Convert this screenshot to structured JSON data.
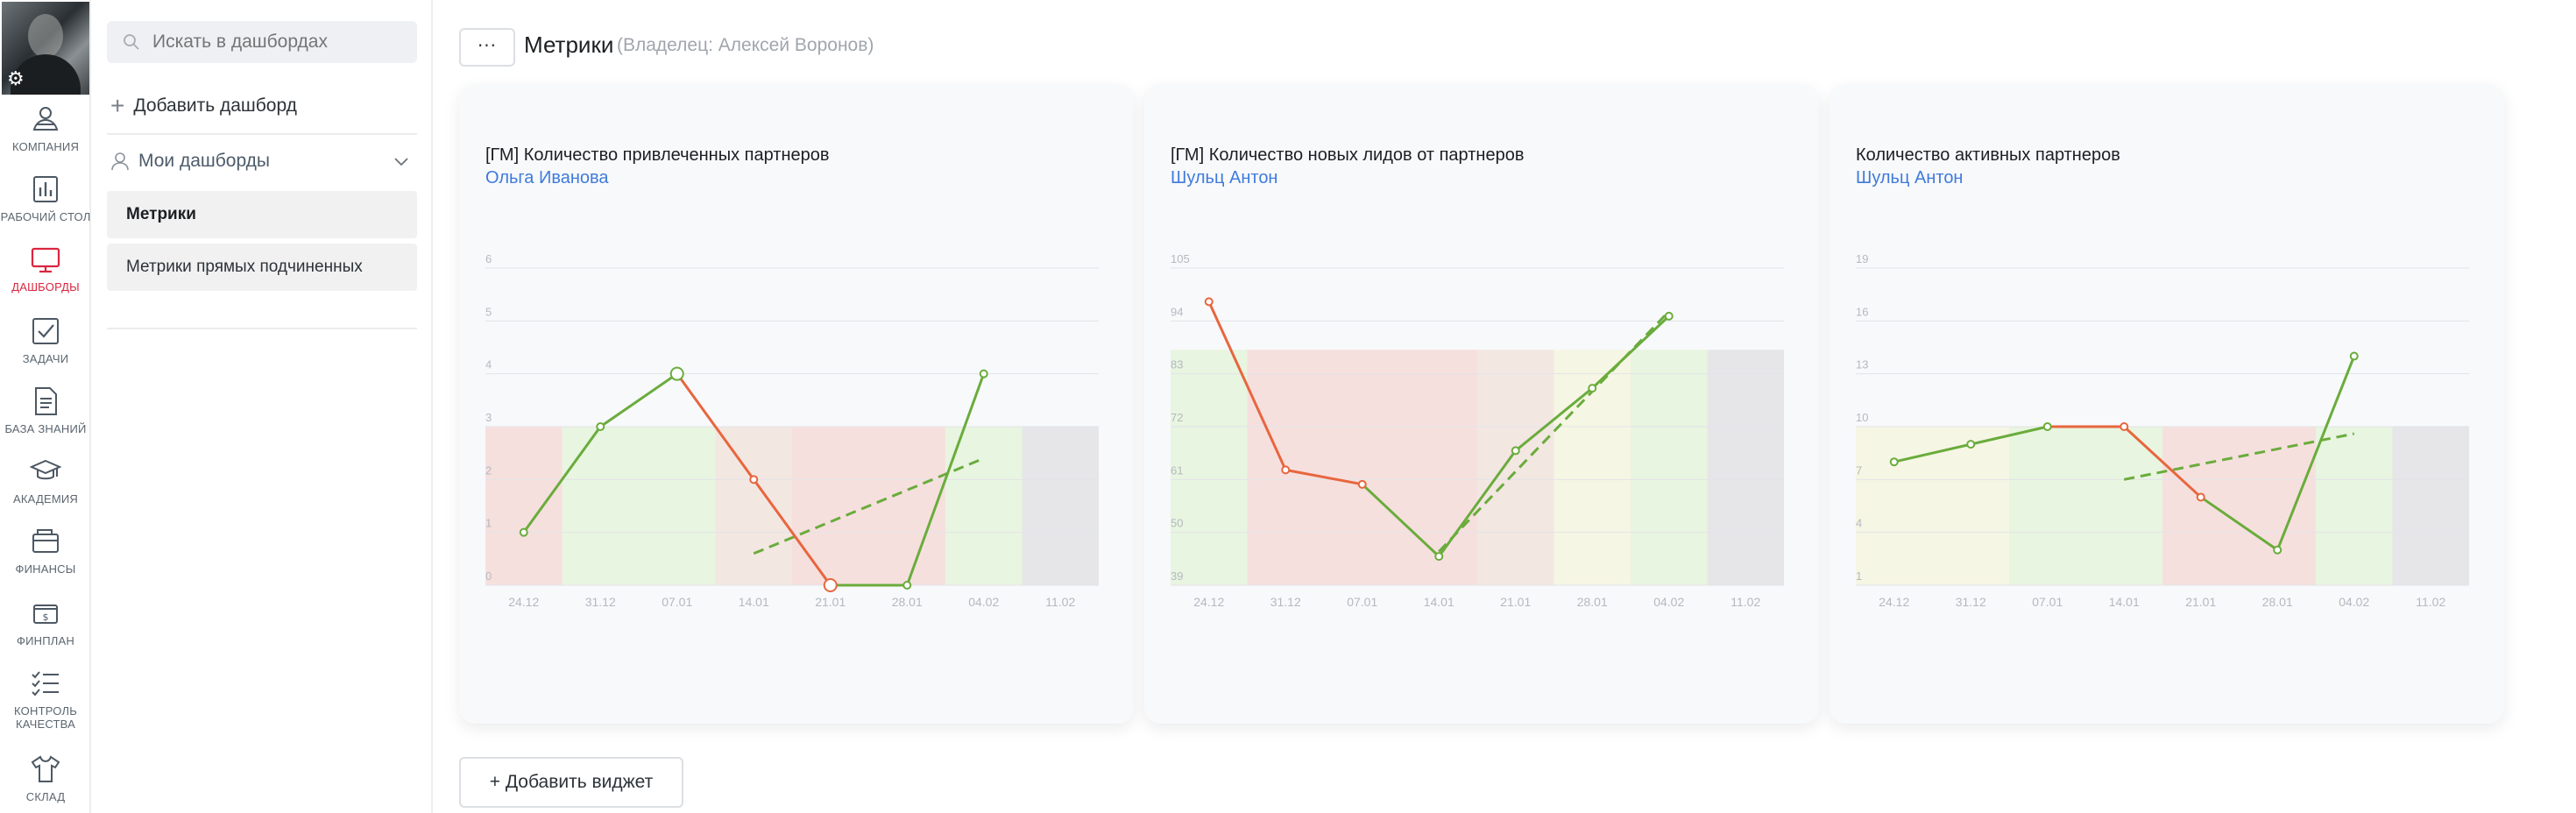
{
  "rail": {
    "items": [
      {
        "label": "КОМПАНИЯ",
        "icon": "company-icon"
      },
      {
        "label": "РАБОЧИЙ СТОЛ",
        "icon": "desktop-chart-icon"
      },
      {
        "label": "ДАШБОРДЫ",
        "icon": "dashboards-monitor-icon",
        "active": true
      },
      {
        "label": "ЗАДАЧИ",
        "icon": "tasks-check-icon"
      },
      {
        "label": "БАЗА ЗНАНИЙ",
        "icon": "knowledge-doc-icon"
      },
      {
        "label": "АКАДЕМИЯ",
        "icon": "academy-cap-icon"
      },
      {
        "label": "ФИНАНСЫ",
        "icon": "finance-wallet-icon"
      },
      {
        "label": "ФИНПЛАН",
        "icon": "finplan-icon"
      },
      {
        "label": "КОНТРОЛЬ КАЧЕСТВА",
        "icon": "quality-checklist-icon"
      },
      {
        "label": "СКЛАД",
        "icon": "warehouse-shirt-icon"
      }
    ],
    "active_color": "#d9263f"
  },
  "sidebar": {
    "search_placeholder": "Искать в дашбордах",
    "add_dashboard": "Добавить дашборд",
    "my_dashboards": "Мои дашборды",
    "dashboards": [
      "Метрики",
      "Метрики прямых подчиненных"
    ]
  },
  "main": {
    "menu_button": "···",
    "title": "Метрики",
    "owner": "(Владелец: Алексей Воронов)",
    "add_widget": "+ Добавить виджет"
  },
  "chart_data": [
    {
      "type": "line",
      "title": "[ГМ] Количество привлеченных партнеров",
      "owner": "Ольга Иванова",
      "x": [
        "24.12",
        "31.12",
        "07.01",
        "14.01",
        "21.01",
        "28.01",
        "04.02",
        "11.02"
      ],
      "yticks": [
        "0",
        "1",
        "2",
        "3",
        "4",
        "5",
        "6"
      ],
      "ylim": [
        0,
        6
      ],
      "band": [
        0,
        3
      ],
      "bands": [
        "red",
        "green",
        "green",
        "beige",
        "red",
        "red",
        "green",
        "gray"
      ],
      "points": [
        {
          "x": 0,
          "y": 1,
          "c": "green"
        },
        {
          "x": 1,
          "y": 3,
          "c": "green"
        },
        {
          "x": 2,
          "y": 4,
          "c": "green"
        },
        {
          "x": 3,
          "y": 2,
          "c": "red"
        },
        {
          "x": 4,
          "y": 0,
          "c": "red"
        },
        {
          "x": 5,
          "y": 0,
          "c": "green"
        },
        {
          "x": 6,
          "y": 4,
          "c": "green"
        }
      ],
      "trend": [
        [
          3,
          0.6
        ],
        [
          6,
          2.4
        ]
      ]
    },
    {
      "type": "line",
      "title": "[ГМ] Количество новых лидов от партнеров",
      "owner": "Шульц Антон",
      "x": [
        "24.12",
        "31.12",
        "07.01",
        "14.01",
        "21.01",
        "28.01",
        "04.02",
        "11.02"
      ],
      "yticks": [
        "39",
        "50",
        "61",
        "72",
        "83",
        "94",
        "105"
      ],
      "ylim": [
        39,
        105
      ],
      "band": [
        39,
        88
      ],
      "bands": [
        "green",
        "red",
        "red",
        "red",
        "beige",
        "yellow",
        "green",
        "gray"
      ],
      "points": [
        {
          "x": 0,
          "y": 98,
          "c": "red"
        },
        {
          "x": 1,
          "y": 63,
          "c": "red"
        },
        {
          "x": 2,
          "y": 60,
          "c": "red"
        },
        {
          "x": 3,
          "y": 45,
          "c": "green"
        },
        {
          "x": 4,
          "y": 67,
          "c": "green"
        },
        {
          "x": 5,
          "y": 80,
          "c": "green"
        },
        {
          "x": 6,
          "y": 95,
          "c": "green"
        }
      ],
      "trend": [
        [
          3,
          46
        ],
        [
          6,
          96
        ]
      ]
    },
    {
      "type": "line",
      "title": "Количество активных партнеров",
      "owner": "Шульц Антон",
      "x": [
        "24.12",
        "31.12",
        "07.01",
        "14.01",
        "21.01",
        "28.01",
        "04.02",
        "11.02"
      ],
      "yticks": [
        "1",
        "4",
        "7",
        "10",
        "13",
        "16",
        "19"
      ],
      "ylim": [
        1,
        19
      ],
      "band": [
        1,
        10
      ],
      "bands": [
        "yellow",
        "yellow",
        "green",
        "green",
        "red",
        "red",
        "green",
        "gray"
      ],
      "points": [
        {
          "x": 0,
          "y": 8,
          "c": "green"
        },
        {
          "x": 1,
          "y": 9,
          "c": "green"
        },
        {
          "x": 2,
          "y": 10,
          "c": "green"
        },
        {
          "x": 3,
          "y": 10,
          "c": "red"
        },
        {
          "x": 4,
          "y": 6,
          "c": "red"
        },
        {
          "x": 5,
          "y": 3,
          "c": "green"
        },
        {
          "x": 6,
          "y": 14,
          "c": "green"
        }
      ],
      "trend": [
        [
          3,
          7
        ],
        [
          6,
          9.6
        ]
      ]
    }
  ],
  "colors": {
    "line_green": "#6aac3c",
    "line_red": "#e8663e",
    "band_green": "#e8f5e0",
    "band_red": "#f6e0de",
    "band_beige": "#f3e7e2",
    "band_yellow": "#f6f6e4",
    "band_gray": "#e6e6e8",
    "owner_link": "#3f7bdc"
  }
}
